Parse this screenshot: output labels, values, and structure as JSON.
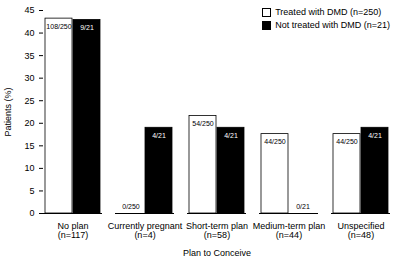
{
  "chart_data": {
    "type": "bar",
    "categories": [
      "No plan (n=117)",
      "Currently pregnant (n=4)",
      "Short-term plan (n=58)",
      "Medium-term plan (n=44)",
      "Unspecified (n=48)"
    ],
    "series": [
      {
        "name": "Treated with DMD (n=250)",
        "color": "#ffffff",
        "values": [
          43.2,
          0,
          21.6,
          17.6,
          17.6
        ],
        "value_labels": [
          "108/250",
          "0/250",
          "54/250",
          "44/250",
          "44/250"
        ]
      },
      {
        "name": "Not treated with DMD (n=21)",
        "color": "#000000",
        "values": [
          42.9,
          19.0,
          19.0,
          0,
          19.0
        ],
        "value_labels": [
          "9/21",
          "4/21",
          "4/21",
          "0/21",
          "4/21"
        ]
      }
    ],
    "x_label": "Plan to Conceive",
    "y_label": "Patients (%)",
    "ylim": [
      0,
      45
    ],
    "yticks": [
      0,
      5,
      10,
      15,
      20,
      25,
      30,
      35,
      40,
      45
    ],
    "legend": "top-right",
    "data_labels": true,
    "grid": false
  }
}
